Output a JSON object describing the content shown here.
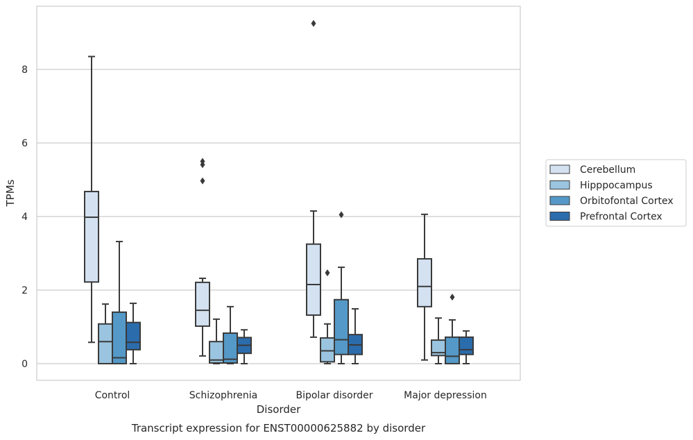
{
  "chart_data": {
    "type": "box",
    "title": "Transcript expression for ENST00000625882 by disorder",
    "xlabel": "Disorder",
    "ylabel": "TPMs",
    "ylim": [
      -0.45,
      9.7
    ],
    "yticks": [
      0,
      2,
      4,
      6,
      8
    ],
    "grid": "horizontal",
    "legend_position": "right",
    "categories": [
      "Control",
      "Schizophrenia",
      "Bipolar disorder",
      "Major depression"
    ],
    "series": [
      {
        "name": "Cerebellum",
        "color": "#d3e1f1",
        "boxes": [
          {
            "whisker_low": 0.58,
            "q1": 2.22,
            "median": 3.98,
            "q3": 4.68,
            "whisker_high": 8.35,
            "outliers": []
          },
          {
            "whisker_low": 0.21,
            "q1": 1.02,
            "median": 1.45,
            "q3": 2.21,
            "whisker_high": 2.32,
            "outliers": [
              4.97,
              5.41,
              5.5
            ]
          },
          {
            "whisker_low": 0.72,
            "q1": 1.32,
            "median": 2.15,
            "q3": 3.25,
            "whisker_high": 4.15,
            "outliers": [
              9.25
            ]
          },
          {
            "whisker_low": 0.1,
            "q1": 1.55,
            "median": 2.1,
            "q3": 2.85,
            "whisker_high": 4.06,
            "outliers": []
          }
        ]
      },
      {
        "name": "Hipppocampus",
        "color": "#9ac4df",
        "boxes": [
          {
            "whisker_low": 0.0,
            "q1": 0.0,
            "median": 0.6,
            "q3": 1.08,
            "whisker_high": 1.62,
            "outliers": []
          },
          {
            "whisker_low": 0.0,
            "q1": 0.02,
            "median": 0.1,
            "q3": 0.6,
            "whisker_high": 1.21,
            "outliers": []
          },
          {
            "whisker_low": 0.0,
            "q1": 0.05,
            "median": 0.35,
            "q3": 0.7,
            "whisker_high": 1.08,
            "outliers": [
              2.47
            ]
          },
          {
            "whisker_low": 0.0,
            "q1": 0.22,
            "median": 0.3,
            "q3": 0.64,
            "whisker_high": 1.24,
            "outliers": []
          }
        ]
      },
      {
        "name": "Orbitofontal Cortex",
        "color": "#5499c7",
        "boxes": [
          {
            "whisker_low": 0.0,
            "q1": 0.0,
            "median": 0.16,
            "q3": 1.4,
            "whisker_high": 3.32,
            "outliers": []
          },
          {
            "whisker_low": 0.0,
            "q1": 0.02,
            "median": 0.12,
            "q3": 0.83,
            "whisker_high": 1.55,
            "outliers": []
          },
          {
            "whisker_low": 0.0,
            "q1": 0.25,
            "median": 0.65,
            "q3": 1.74,
            "whisker_high": 2.62,
            "outliers": [
              4.05
            ]
          },
          {
            "whisker_low": 0.0,
            "q1": 0.0,
            "median": 0.2,
            "q3": 0.72,
            "whisker_high": 1.19,
            "outliers": [
              1.81
            ]
          }
        ]
      },
      {
        "name": "Prefrontal Cortex",
        "color": "#2b6cac",
        "boxes": [
          {
            "whisker_low": 0.0,
            "q1": 0.38,
            "median": 0.58,
            "q3": 1.12,
            "whisker_high": 1.64,
            "outliers": []
          },
          {
            "whisker_low": 0.0,
            "q1": 0.28,
            "median": 0.5,
            "q3": 0.71,
            "whisker_high": 0.92,
            "outliers": []
          },
          {
            "whisker_low": 0.0,
            "q1": 0.25,
            "median": 0.51,
            "q3": 0.79,
            "whisker_high": 1.49,
            "outliers": []
          },
          {
            "whisker_low": 0.0,
            "q1": 0.25,
            "median": 0.38,
            "q3": 0.72,
            "whisker_high": 0.89,
            "outliers": []
          }
        ]
      }
    ]
  }
}
